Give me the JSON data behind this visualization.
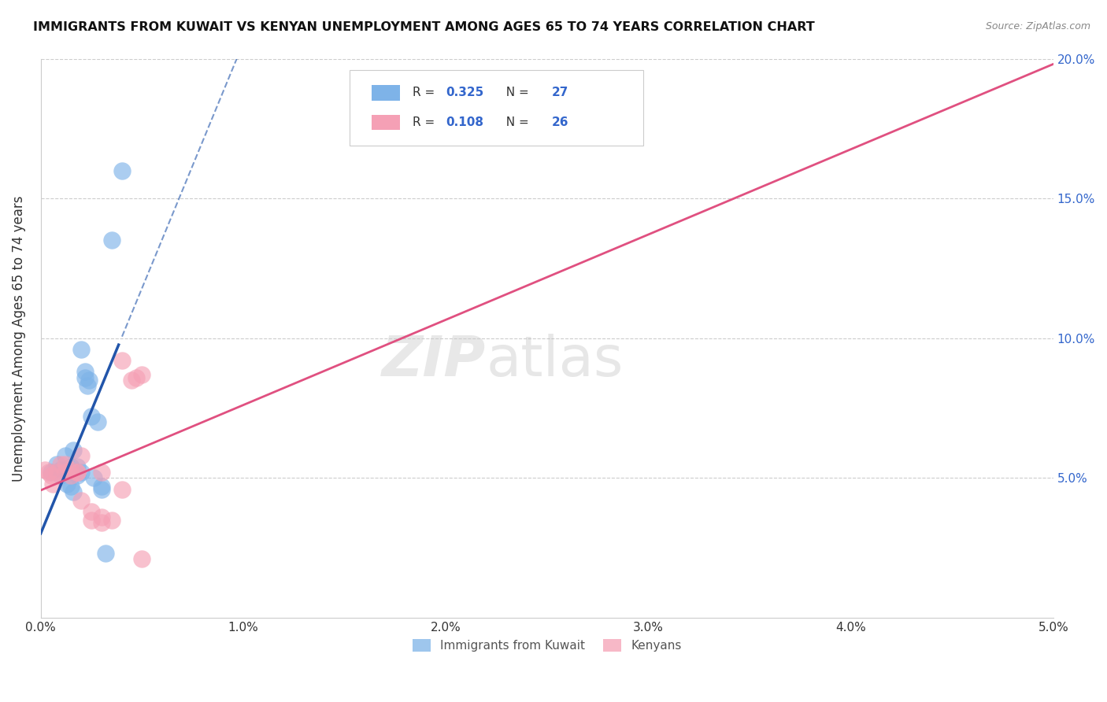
{
  "title": "IMMIGRANTS FROM KUWAIT VS KENYAN UNEMPLOYMENT AMONG AGES 65 TO 74 YEARS CORRELATION CHART",
  "source": "Source: ZipAtlas.com",
  "ylabel": "Unemployment Among Ages 65 to 74 years",
  "xlim": [
    0,
    0.05
  ],
  "ylim": [
    0,
    0.2
  ],
  "xticks": [
    0.0,
    0.01,
    0.02,
    0.03,
    0.04,
    0.05
  ],
  "yticks": [
    0.0,
    0.05,
    0.1,
    0.15,
    0.2
  ],
  "ytick_labels_right": [
    "",
    "5.0%",
    "10.0%",
    "15.0%",
    "20.0%"
  ],
  "xtick_labels": [
    "0.0%",
    "1.0%",
    "2.0%",
    "3.0%",
    "4.0%",
    "5.0%"
  ],
  "blue_color": "#7EB3E8",
  "pink_color": "#F5A0B5",
  "blue_line_color": "#2255AA",
  "pink_line_color": "#E05080",
  "R_blue": "0.325",
  "N_blue": "27",
  "R_pink": "0.108",
  "N_pink": "26",
  "kuwait_points": [
    [
      0.0005,
      0.052
    ],
    [
      0.0008,
      0.055
    ],
    [
      0.001,
      0.051
    ],
    [
      0.001,
      0.053
    ],
    [
      0.0012,
      0.058
    ],
    [
      0.0013,
      0.048
    ],
    [
      0.0013,
      0.052
    ],
    [
      0.0015,
      0.054
    ],
    [
      0.0015,
      0.047
    ],
    [
      0.0016,
      0.045
    ],
    [
      0.0016,
      0.06
    ],
    [
      0.0018,
      0.054
    ],
    [
      0.0018,
      0.051
    ],
    [
      0.002,
      0.096
    ],
    [
      0.002,
      0.052
    ],
    [
      0.0022,
      0.088
    ],
    [
      0.0022,
      0.086
    ],
    [
      0.0023,
      0.083
    ],
    [
      0.0024,
      0.085
    ],
    [
      0.0025,
      0.072
    ],
    [
      0.0026,
      0.05
    ],
    [
      0.0028,
      0.07
    ],
    [
      0.003,
      0.046
    ],
    [
      0.0035,
      0.135
    ],
    [
      0.004,
      0.16
    ],
    [
      0.0032,
      0.023
    ],
    [
      0.003,
      0.047
    ]
  ],
  "kenyan_points": [
    [
      0.0002,
      0.053
    ],
    [
      0.0004,
      0.052
    ],
    [
      0.0005,
      0.051
    ],
    [
      0.0006,
      0.048
    ],
    [
      0.0008,
      0.052
    ],
    [
      0.001,
      0.055
    ],
    [
      0.0012,
      0.055
    ],
    [
      0.0012,
      0.052
    ],
    [
      0.0015,
      0.051
    ],
    [
      0.0015,
      0.053
    ],
    [
      0.0018,
      0.052
    ],
    [
      0.0018,
      0.052
    ],
    [
      0.002,
      0.058
    ],
    [
      0.002,
      0.042
    ],
    [
      0.0025,
      0.038
    ],
    [
      0.0025,
      0.035
    ],
    [
      0.003,
      0.052
    ],
    [
      0.003,
      0.036
    ],
    [
      0.003,
      0.034
    ],
    [
      0.0035,
      0.035
    ],
    [
      0.004,
      0.092
    ],
    [
      0.004,
      0.046
    ],
    [
      0.005,
      0.021
    ],
    [
      0.005,
      0.087
    ],
    [
      0.0045,
      0.085
    ],
    [
      0.0047,
      0.086
    ]
  ],
  "watermark_zip": "ZIP",
  "watermark_atlas": "atlas",
  "background_color": "#FFFFFF",
  "grid_color": "#CCCCCC"
}
